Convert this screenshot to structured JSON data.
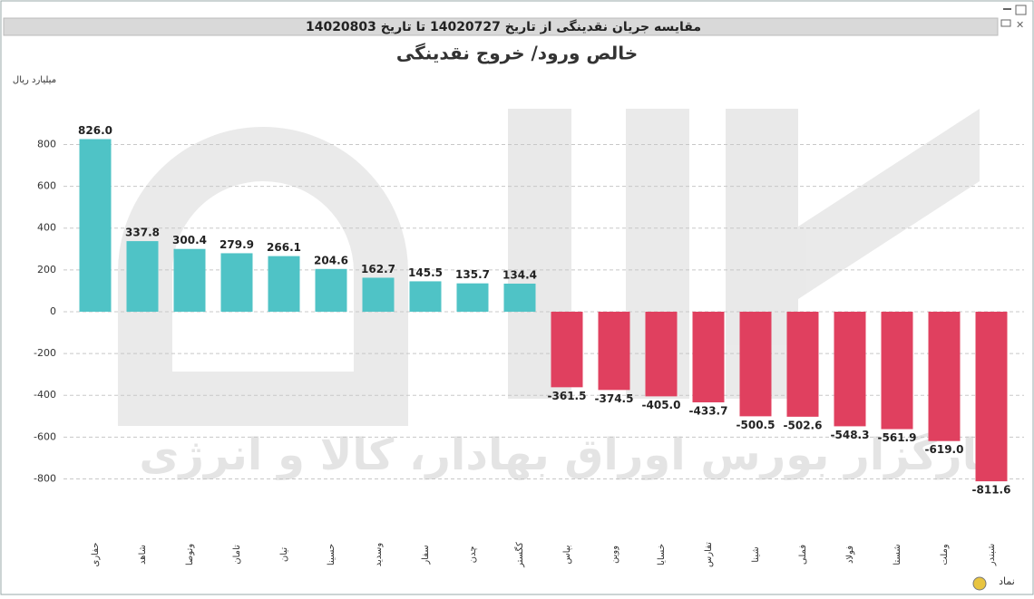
{
  "chart_data": {
    "type": "bar",
    "header": "مقایسه جریان نقدینگی از تاریخ 14020727 تا تاریخ 14020803",
    "title": "خالص ورود/ خروج نقدینگی",
    "y_label": "میلیارد ریال",
    "x_label": "نماد",
    "watermark": "کارگزار بورس اوراق بهادار، کالا و انرژی",
    "categories": [
      "حفاری",
      "شاهد",
      "وتوصا",
      "تامان",
      "تیان",
      "حسینا",
      "وسدید",
      "سفار",
      "چدن",
      "کگستر",
      "بپاس",
      "ووین",
      "خسایا",
      "تفارس",
      "شینا",
      "فملی",
      "فولاد",
      "شستا",
      "وملت",
      "شبندر"
    ],
    "values": [
      826.0,
      337.8,
      300.4,
      279.9,
      266.1,
      204.6,
      162.7,
      145.5,
      135.7,
      134.4,
      -361.5,
      -374.5,
      -405.0,
      -433.7,
      -500.5,
      -502.6,
      -548.3,
      -561.9,
      -619.0,
      -811.6
    ],
    "value_labels": [
      "826.0",
      "337.8",
      "300.4",
      "279.9",
      "266.1",
      "204.6",
      "162.7",
      "145.5",
      "135.7",
      "134.4",
      "-361.5",
      "-374.5",
      "-405.0",
      "-433.7",
      "-500.5",
      "-502.6",
      "-548.3",
      "-561.9",
      "-619.0",
      "-811.6"
    ],
    "positive_color": "#4fc3c6",
    "negative_color": "#e0405f",
    "ylim": [
      -900,
      1000
    ],
    "yticks": [
      -800,
      -600,
      -400,
      -200,
      0,
      200,
      400,
      600,
      800
    ],
    "grid": true
  }
}
